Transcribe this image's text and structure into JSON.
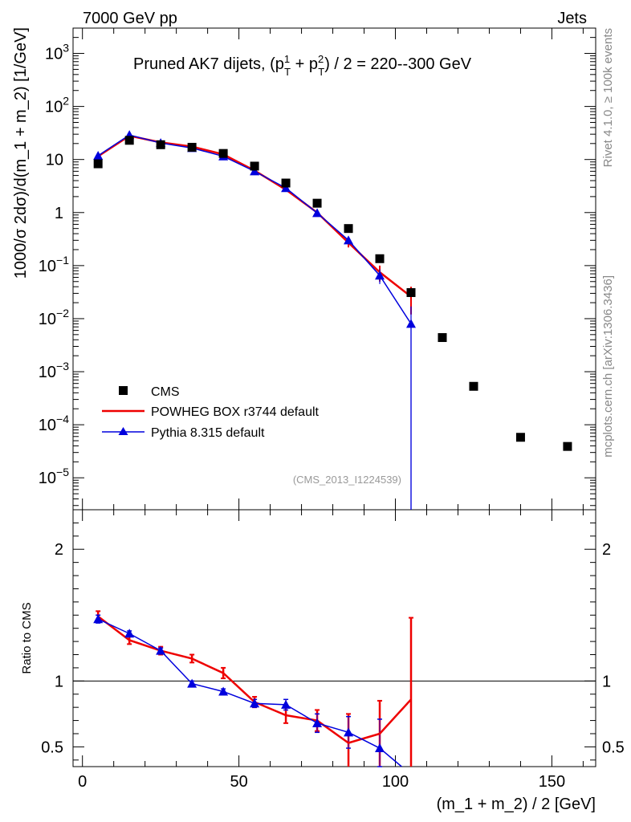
{
  "header": {
    "left": "7000 GeV pp",
    "right": "Jets"
  },
  "side": {
    "rivet": "Rivet 4.1.0, ≥ 100k events",
    "mcplots": "mcplots.cern.ch [arXiv:1306.3436]"
  },
  "analysis_ref": "(CMS_2013_I1224539)",
  "colors": {
    "data": "#000000",
    "powheg": "#ee0000",
    "pythia": "#0000dd",
    "overlap": "#660099"
  },
  "chart_data": [
    {
      "type": "scatter",
      "panel": "main",
      "title": "Pruned AK7 dijets, (p_T^1 + p_T^2) / 2 = 220--300 GeV",
      "title_parts": {
        "pre": "Pruned AK7 dijets, (p",
        "s1": "1",
        "t1": "T",
        "mid": " + p",
        "s2": "2",
        "t2": "T",
        "post": ") / 2 = 220--300 GeV"
      },
      "ylabel": "1000/σ   2dσ)/d(m_1 + m_2) [1/GeV]",
      "yscale": "log",
      "ylim": [
        2.5e-06,
        3000
      ],
      "xlim": [
        -3,
        164
      ],
      "yticks": [
        {
          "v": 1000.0,
          "m": "10",
          "e": "3"
        },
        {
          "v": 100.0,
          "m": "10",
          "e": "2"
        },
        {
          "v": 10.0,
          "m": "10",
          "e": ""
        },
        {
          "v": 1,
          "m": "1",
          "e": ""
        },
        {
          "v": 0.1,
          "m": "10",
          "e": "−1"
        },
        {
          "v": 0.01,
          "m": "10",
          "e": "−2"
        },
        {
          "v": 0.001,
          "m": "10",
          "e": "−3"
        },
        {
          "v": 0.0001,
          "m": "10",
          "e": "−4"
        },
        {
          "v": 1e-05,
          "m": "10",
          "e": "−5"
        }
      ],
      "legend": {
        "position": "lower-left",
        "entries": [
          "CMS",
          "POWHEG BOX r3744 default",
          "Pythia 8.315 default"
        ]
      },
      "series": [
        {
          "name": "CMS",
          "x": [
            5,
            15,
            25,
            35,
            45,
            55,
            65,
            75,
            85,
            95,
            105,
            115,
            125,
            140,
            155
          ],
          "y": [
            8.3,
            23,
            19,
            17,
            13,
            7.5,
            3.6,
            1.5,
            0.5,
            0.135,
            0.031,
            0.0044,
            0.00053,
            5.8e-05,
            3.9e-05
          ]
        },
        {
          "name": "POWHEG BOX r3744 default",
          "x": [
            5,
            15,
            25,
            35,
            45,
            55,
            65,
            75,
            85,
            95,
            105
          ],
          "y": [
            11.5,
            28,
            21,
            17.5,
            12.5,
            6.2,
            2.7,
            1.0,
            0.27,
            0.075,
            0.026
          ],
          "err": [
            0.6,
            1.0,
            0.7,
            0.6,
            0.5,
            0.3,
            0.15,
            0.08,
            0.05,
            0.025,
            0.014
          ]
        },
        {
          "name": "Pythia 8.315 default",
          "x": [
            5,
            15,
            25,
            35,
            45,
            55,
            65,
            75,
            85,
            95,
            105
          ],
          "y": [
            11.8,
            29,
            20.5,
            16.5,
            11.5,
            6.0,
            2.9,
            0.98,
            0.3,
            0.065,
            0.008
          ],
          "err": [
            0.5,
            0.8,
            0.6,
            0.5,
            0.4,
            0.25,
            0.15,
            0.07,
            0.04,
            0.02,
            0.009
          ]
        }
      ]
    },
    {
      "type": "line",
      "panel": "ratio",
      "ylabel": "Ratio to CMS",
      "xlabel": "(m_1 + m_2) / 2 [GeV]",
      "ylim": [
        0.35,
        2.3
      ],
      "xlim": [
        -3,
        164
      ],
      "yticks": [
        {
          "v": 0.5,
          "label": "0.5"
        },
        {
          "v": 1,
          "label": "1"
        },
        {
          "v": 2,
          "label": "2"
        }
      ],
      "xticks": [
        {
          "v": 0,
          "label": "0"
        },
        {
          "v": 50,
          "label": "50"
        },
        {
          "v": 100,
          "label": "100"
        },
        {
          "v": 150,
          "label": "150"
        }
      ],
      "reference_line": 1,
      "series": [
        {
          "name": "POWHEG BOX r3744 default",
          "x": [
            5,
            15,
            25,
            35,
            45,
            55,
            65,
            75,
            85,
            95,
            105
          ],
          "y": [
            1.49,
            1.31,
            1.23,
            1.17,
            1.06,
            0.84,
            0.74,
            0.7,
            0.53,
            0.6,
            0.86
          ],
          "err": [
            0.04,
            0.03,
            0.03,
            0.03,
            0.04,
            0.04,
            0.06,
            0.08,
            0.22,
            0.25,
            0.62
          ]
        },
        {
          "name": "Pythia 8.315 default",
          "x": [
            5,
            15,
            25,
            35,
            45,
            55,
            65,
            75,
            85,
            95,
            102
          ],
          "y": [
            1.47,
            1.36,
            1.23,
            0.98,
            0.92,
            0.83,
            0.82,
            0.68,
            0.61,
            0.49,
            0.35
          ],
          "err": [
            0.03,
            0.02,
            0.02,
            0.02,
            0.02,
            0.03,
            0.04,
            0.07,
            0.12,
            0.22,
            0.0
          ]
        }
      ]
    }
  ]
}
